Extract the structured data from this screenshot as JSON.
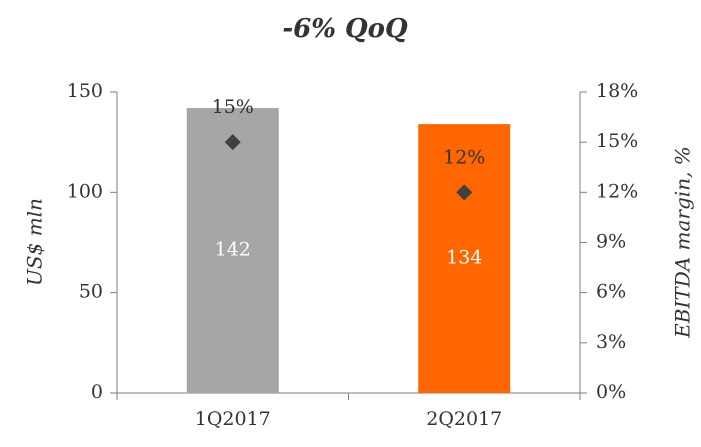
{
  "chart_data": {
    "type": "bar",
    "title": "-6% QoQ",
    "categories": [
      "1Q2017",
      "2Q2017"
    ],
    "ylabel": "US$ mln",
    "y2label": "EBITDA margin, %",
    "ylim": [
      0,
      150
    ],
    "yticks": [
      0,
      50,
      100,
      150
    ],
    "y2lim": [
      0,
      18
    ],
    "y2ticks": [
      {
        "value": 0,
        "label": "0%"
      },
      {
        "value": 3,
        "label": "3%"
      },
      {
        "value": 6,
        "label": "6%"
      },
      {
        "value": 9,
        "label": "9%"
      },
      {
        "value": 12,
        "label": "12%"
      },
      {
        "value": 15,
        "label": "15%"
      },
      {
        "value": 18,
        "label": "18%"
      }
    ],
    "series": [
      {
        "type": "bar",
        "values": [
          142,
          134
        ],
        "colors": [
          "#a6a6a6",
          "#ff6600"
        ]
      },
      {
        "type": "scatter",
        "axis": "y2",
        "values": [
          15,
          12
        ],
        "value_labels": [
          "15%",
          "12%"
        ],
        "color": "#404040"
      }
    ]
  }
}
